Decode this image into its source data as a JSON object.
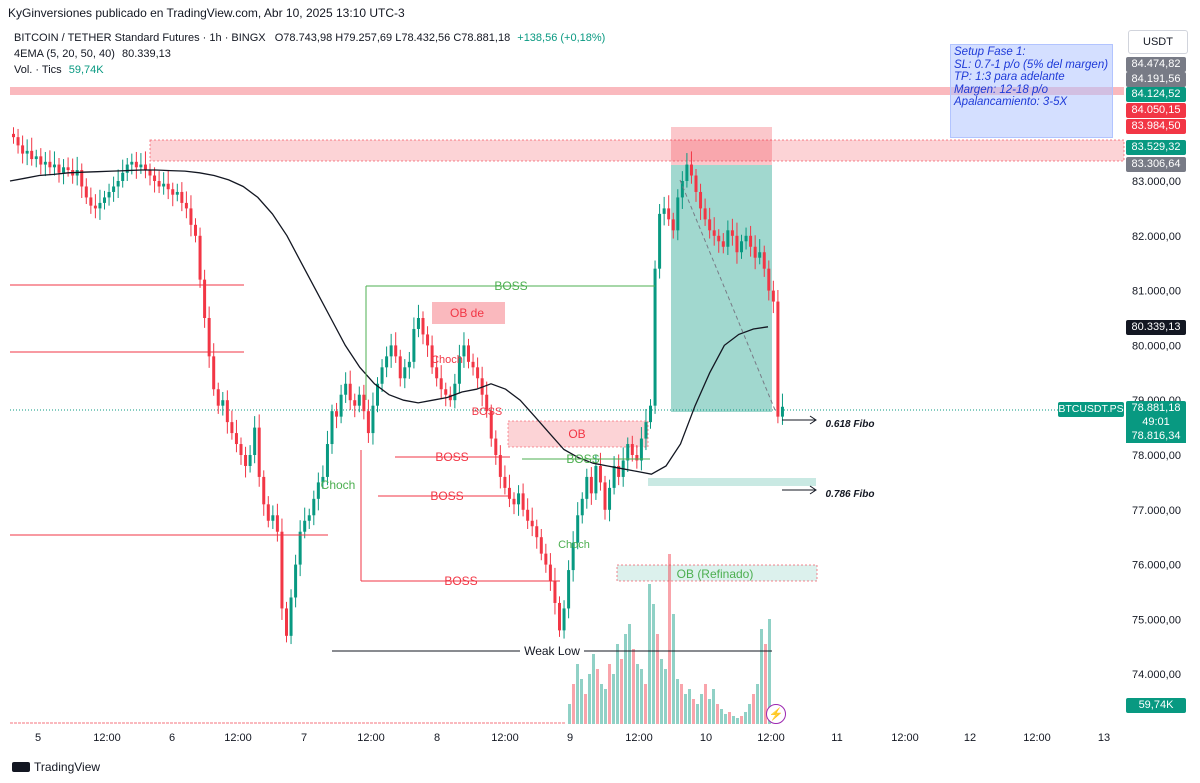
{
  "header": {
    "publisher": "KyGinversiones publicado en TradingView.com, Abr 10, 2025 13:10 UTC-3"
  },
  "legend": {
    "symbol": "BITCOIN / TETHER Standard Futures · 1h · BINGX",
    "ohlc": "O78.743,98 H79.257,69 L78.432,56 C78.881,18",
    "change": "+138,56 (+0,18%)",
    "ema": "4EMA (5, 20, 50, 40)",
    "ema_value": "80.339,13",
    "vol_label": "Vol. · Tics",
    "vol_value": "59,74K"
  },
  "currency": "USDT",
  "setup_box": {
    "lines": [
      "Setup Fase 1:",
      "SL: 0.7-1 p/o (5% del margen)",
      "TP: 1:3 para adelante",
      "Margen: 12-18 p/o",
      "Apalancamiento: 3-5X"
    ]
  },
  "price_tags": [
    {
      "text": "84.474,82",
      "price": 84474.82,
      "color": "#787b86"
    },
    {
      "text": "84.191,56",
      "price": 84191.56,
      "color": "#787b86"
    },
    {
      "text": "84.124,52",
      "price": 84124.52,
      "color": "#089981"
    },
    {
      "text": "84.050,15",
      "price": 84050.15,
      "color": "#f23645"
    },
    {
      "text": "83.984,50",
      "price": 83984.5,
      "color": "#f23645"
    },
    {
      "text": "83.529,32",
      "price": 83529.32,
      "color": "#089981"
    },
    {
      "text": "83.306,64",
      "price": 83306.64,
      "color": "#787b86"
    },
    {
      "text": "80.339,13",
      "price": 80339.13,
      "color": "#131722"
    },
    {
      "text": "59,74K",
      "price": 73600,
      "color": "#089981"
    }
  ],
  "current": {
    "symbol_badge": "BTCUSDT.PS",
    "price": "78.881,18",
    "countdown": "49:01",
    "sub_price": "78.816,34"
  },
  "annotations": {
    "boss": "BOSS",
    "choch": "Choch",
    "ob_de": "OB de",
    "ob": "OB",
    "ob_refinado": "OB (Refinado)",
    "weak_low": "Weak Low",
    "fibo_618": "0.618 Fibo",
    "fibo_786": "0.786 Fibo"
  },
  "footer": {
    "brand": "TradingView"
  },
  "chart_data": {
    "type": "candlestick",
    "y_axis_ticks": [
      "83.000,00",
      "82.000,00",
      "81.000,00",
      "80.000,00",
      "79.000,00",
      "78.000,00",
      "77.000,00",
      "76.000,00",
      "75.000,00",
      "74.000,00"
    ],
    "y_ticks_values": [
      83000,
      82000,
      81000,
      80000,
      79000,
      78000,
      77000,
      76000,
      75000,
      74000
    ],
    "x_axis_ticks": [
      "5",
      "12:00",
      "6",
      "12:00",
      "7",
      "12:00",
      "8",
      "12:00",
      "9",
      "12:00",
      "10",
      "12:00",
      "11",
      "12:00",
      "12",
      "12:00",
      "13"
    ],
    "ylim": [
      73200,
      84900
    ],
    "close_path": [
      83800,
      83650,
      83500,
      83550,
      83400,
      83450,
      83300,
      83350,
      83250,
      83300,
      83150,
      83250,
      83200,
      83100,
      83200,
      82900,
      82700,
      82550,
      82500,
      82600,
      82700,
      82800,
      82900,
      83000,
      83150,
      83300,
      83350,
      83250,
      83300,
      83200,
      83100,
      83000,
      82900,
      82950,
      82850,
      82750,
      82800,
      82600,
      82500,
      82200,
      82000,
      81200,
      80500,
      79800,
      79200,
      78900,
      79000,
      78600,
      78400,
      78200,
      78000,
      77800,
      78000,
      78500,
      77600,
      77100,
      76800,
      76900,
      76600,
      75200,
      74700,
      75400,
      76000,
      76600,
      76800,
      76900,
      77200,
      77500,
      77600,
      78200,
      78800,
      78700,
      79100,
      79300,
      79000,
      78900,
      79100,
      78800,
      78400,
      78900,
      79300,
      79600,
      79800,
      80000,
      79800,
      79400,
      79600,
      79700,
      80300,
      80500,
      80200,
      80000,
      79600,
      79400,
      79200,
      79100,
      79000,
      79300,
      79800,
      80000,
      79700,
      79600,
      79400,
      79100,
      78800,
      78300,
      78000,
      77600,
      77400,
      77200,
      77100,
      77300,
      77000,
      76800,
      76700,
      76500,
      76200,
      76000,
      75700,
      75300,
      74800,
      75200,
      75900,
      76400,
      76900,
      77200,
      77600,
      77300,
      77800,
      77500,
      77000,
      77400,
      77800,
      77600,
      77900,
      78200,
      78000,
      77900,
      78300,
      78600,
      78900,
      81400,
      82400,
      82500,
      82300,
      82100,
      82700,
      83000,
      83300,
      83100,
      82800,
      82500,
      82300,
      82100,
      82000,
      81900,
      81800,
      82100,
      82000,
      81700,
      81900,
      82000,
      81800,
      81600,
      81700,
      81400,
      81000,
      80800,
      78700,
      78880
    ],
    "ema_path": [
      83000,
      83050,
      83100,
      83120,
      83150,
      83160,
      83170,
      83180,
      83190,
      83200,
      83200,
      83190,
      83180,
      83150,
      83100,
      83020,
      82900,
      82700,
      82400,
      82000,
      81500,
      81000,
      80500,
      80000,
      79600,
      79300,
      79100,
      79000,
      78950,
      79000,
      79050,
      79150,
      79200,
      79300,
      79200,
      79000,
      78700,
      78400,
      78100,
      77950,
      77850,
      77800,
      77750,
      77700,
      77650,
      77800,
      78200,
      78900,
      79500,
      80000,
      80200,
      80300,
      80339
    ],
    "volume_note": "Volume histogram bars near bottom (Vol. Tics 59,74K)",
    "series": [
      {
        "name": "4EMA (5, 20, 50, 40)",
        "value": 80339.13
      }
    ]
  }
}
